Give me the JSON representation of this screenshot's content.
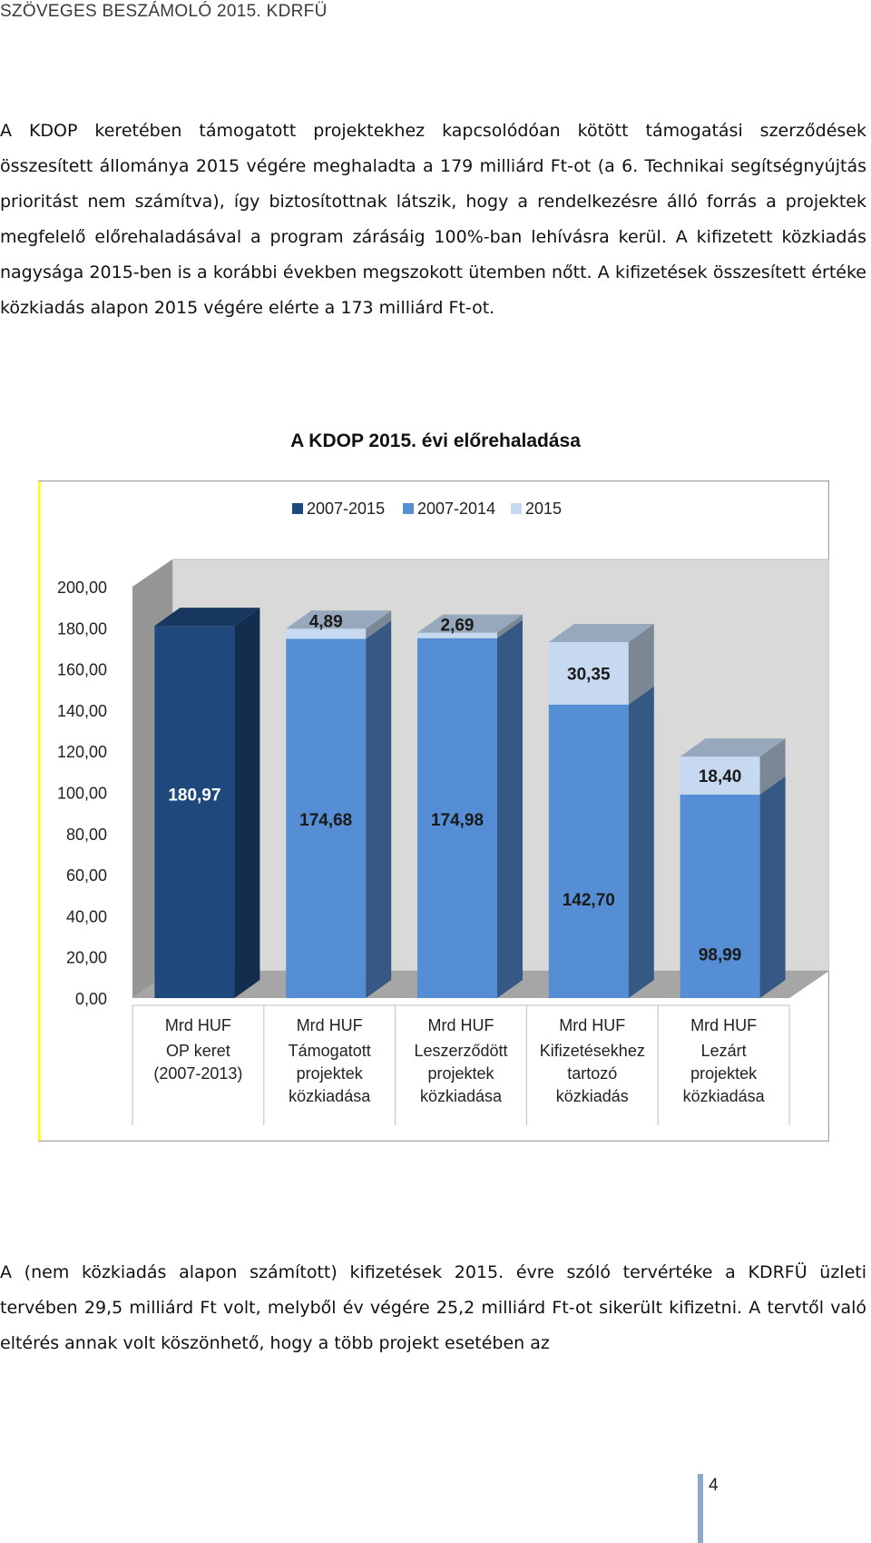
{
  "header": {
    "title": "SZÖVEGES BESZÁMOLÓ 2015. KDRFÜ"
  },
  "body": {
    "paragraph1": "A KDOP keretében támogatott projektekhez kapcsolódóan kötött támogatási szerződések összesített állománya 2015 végére meghaladta a 179 milliárd Ft-ot (a 6. Technikai segítségnyújtás prioritást nem számítva), így biztosítottnak látszik, hogy a rendelkezésre álló forrás a projektek megfelelő előrehaladásával a program zárásáig 100%-ban lehívásra kerül. A kifizetett közkiadás nagysága 2015-ben is a korábbi években megszokott ütemben nőtt. A kifizetések összesített értéke közkiadás alapon 2015 végére elérte a 173 milliárd Ft-ot.",
    "paragraph2": "A (nem közkiadás alapon számított) kifizetések 2015. évre szóló tervértéke a KDRFÜ üzleti tervében 29,5 milliárd Ft volt, melyből év végére 25,2 milliárd Ft-ot sikerült kifizetni. A tervtől való eltérés annak volt köszönhető, hogy a több projekt esetében az"
  },
  "chart_data": {
    "type": "bar",
    "title": "A KDOP 2015. évi előrehaladása",
    "stacked": true,
    "three_d": true,
    "legend_position": "top",
    "legend": [
      "2007-2015",
      "2007-2014",
      "2015"
    ],
    "categories": [
      [
        "Mrd HUF",
        "OP keret",
        "(2007-2013)"
      ],
      [
        "Mrd HUF",
        "Támogatott",
        "projektek",
        "közkiadása"
      ],
      [
        "Mrd HUF",
        "Leszerződött",
        "projektek",
        "közkiadása"
      ],
      [
        "Mrd HUF",
        "Kifizetésekhez",
        "tartozó",
        "közkiadás"
      ],
      [
        "Mrd HUF",
        "Lezárt",
        "projektek",
        "közkiadása"
      ]
    ],
    "series": [
      {
        "name": "2007-2015",
        "color": "#1f497d",
        "values": [
          180.97,
          null,
          null,
          null,
          null
        ]
      },
      {
        "name": "2007-2014",
        "color": "#558ed5",
        "values": [
          null,
          174.68,
          174.98,
          142.7,
          98.99
        ]
      },
      {
        "name": "2015",
        "color": "#c6d9f1",
        "values": [
          null,
          4.89,
          2.69,
          30.35,
          18.4
        ]
      }
    ],
    "data_labels": [
      [
        "180,97"
      ],
      [
        "174,68",
        "4,89"
      ],
      [
        "174,98",
        "2,69"
      ],
      [
        "142,70",
        "30,35"
      ],
      [
        "98,99",
        "18,40"
      ]
    ],
    "y_ticks": [
      "0,00",
      "20,00",
      "40,00",
      "60,00",
      "80,00",
      "100,00",
      "120,00",
      "140,00",
      "160,00",
      "180,00",
      "200,00"
    ],
    "ylim": [
      0,
      200
    ],
    "grid": false,
    "colors": {
      "border": "#a6a6a6",
      "wall": "#d9d9d9",
      "floor": "#a6a6a6",
      "side_wall": "#969696",
      "accent_left": "#ffff00"
    }
  },
  "page": {
    "number": "4"
  }
}
